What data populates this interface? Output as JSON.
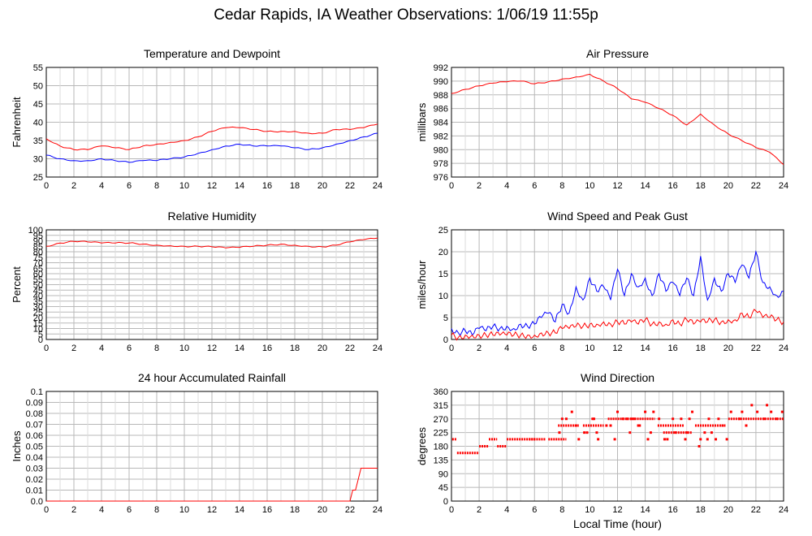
{
  "page": {
    "title": "Cedar Rapids, IA Weather Observations: 1/06/19 11:55p",
    "xlabel": "Local Time (hour)"
  },
  "chart_data": [
    {
      "id": "temp",
      "type": "line",
      "title": "Temperature and Dewpoint",
      "ylabel": "Fahrenheit",
      "xlim": [
        0,
        24
      ],
      "ylim": [
        25,
        55
      ],
      "x_ticks": [
        0,
        2,
        4,
        6,
        8,
        10,
        12,
        14,
        16,
        18,
        20,
        22,
        24
      ],
      "y_ticks": [
        25,
        30,
        35,
        40,
        45,
        50,
        55
      ],
      "grid": true,
      "series": [
        {
          "color": "#ff0000",
          "x": [
            0,
            1,
            2,
            3,
            4,
            5,
            6,
            7,
            8,
            9,
            10,
            11,
            12,
            13,
            14,
            15,
            16,
            17,
            18,
            19,
            20,
            21,
            22,
            23,
            24
          ],
          "y": [
            35.5,
            33.5,
            32.5,
            32.5,
            33.5,
            33,
            32.5,
            33.5,
            34,
            34.5,
            35,
            36,
            37.5,
            38.5,
            38.5,
            38,
            37.5,
            37.5,
            37.5,
            37,
            37,
            38,
            38,
            38.5,
            39.5
          ]
        },
        {
          "color": "#0000ff",
          "x": [
            0,
            1,
            2,
            3,
            4,
            5,
            6,
            7,
            8,
            9,
            10,
            11,
            12,
            13,
            14,
            15,
            16,
            17,
            18,
            19,
            20,
            21,
            22,
            23,
            24
          ],
          "y": [
            31,
            30,
            29.5,
            29.5,
            30,
            29.5,
            29,
            29.5,
            29.5,
            30,
            30.5,
            31.5,
            32.5,
            33.5,
            34,
            33.5,
            33.5,
            33.5,
            33,
            32.5,
            33,
            34,
            35,
            36,
            37
          ]
        }
      ]
    },
    {
      "id": "pressure",
      "type": "line",
      "title": "Air Pressure",
      "ylabel": "millibars",
      "xlim": [
        0,
        24
      ],
      "ylim": [
        976,
        992
      ],
      "x_ticks": [
        0,
        2,
        4,
        6,
        8,
        10,
        12,
        14,
        16,
        18,
        20,
        22,
        24
      ],
      "y_ticks": [
        976,
        978,
        980,
        982,
        984,
        986,
        988,
        990,
        992
      ],
      "grid": true,
      "series": [
        {
          "color": "#ff0000",
          "x": [
            0,
            1,
            2,
            3,
            4,
            5,
            6,
            7,
            8,
            9,
            10,
            11,
            12,
            13,
            14,
            15,
            16,
            17,
            18,
            19,
            20,
            21,
            22,
            23,
            24
          ],
          "y": [
            988.2,
            988.8,
            989.3,
            989.7,
            989.9,
            990,
            989.6,
            989.9,
            990.3,
            990.6,
            991,
            990,
            988.9,
            987.4,
            986.9,
            986,
            985,
            983.6,
            985.2,
            983.6,
            982.3,
            981.3,
            980.3,
            979.6,
            977.8
          ]
        }
      ]
    },
    {
      "id": "humidity",
      "type": "line",
      "title": "Relative Humidity",
      "ylabel": "Percent",
      "xlim": [
        0,
        24
      ],
      "ylim": [
        0,
        100
      ],
      "x_ticks": [
        0,
        2,
        4,
        6,
        8,
        10,
        12,
        14,
        16,
        18,
        20,
        22,
        24
      ],
      "y_ticks": [
        0,
        5,
        10,
        15,
        20,
        25,
        30,
        35,
        40,
        45,
        50,
        55,
        60,
        65,
        70,
        75,
        80,
        85,
        90,
        95,
        100
      ],
      "grid": true,
      "series": [
        {
          "color": "#ff0000",
          "x": [
            0,
            1,
            2,
            3,
            4,
            5,
            6,
            7,
            8,
            9,
            10,
            11,
            12,
            13,
            14,
            15,
            16,
            17,
            18,
            19,
            20,
            21,
            22,
            23,
            24
          ],
          "y": [
            85,
            88,
            89.5,
            89,
            88,
            88,
            88,
            87,
            86,
            85.5,
            85,
            85,
            84.5,
            83.5,
            84,
            85,
            86,
            87,
            86,
            85,
            84.5,
            86,
            89,
            91,
            92.5
          ]
        }
      ]
    },
    {
      "id": "wind",
      "type": "line",
      "title": "Wind Speed and Peak Gust",
      "ylabel": "miles/hour",
      "xlim": [
        0,
        24
      ],
      "ylim": [
        0,
        25
      ],
      "x_ticks": [
        0,
        2,
        4,
        6,
        8,
        10,
        12,
        14,
        16,
        18,
        20,
        22,
        24
      ],
      "y_ticks": [
        0,
        5,
        10,
        15,
        20,
        25
      ],
      "grid": true,
      "series": [
        {
          "color": "#0000ff",
          "x": [
            0,
            0.5,
            1,
            1.5,
            2,
            2.5,
            3,
            3.5,
            4,
            4.5,
            5,
            5.5,
            6,
            6.5,
            7,
            7.5,
            8,
            8.5,
            9,
            9.5,
            10,
            10.5,
            11,
            11.5,
            12,
            12.5,
            13,
            13.5,
            14,
            14.5,
            15,
            15.5,
            16,
            16.5,
            17,
            17.5,
            18,
            18.5,
            19,
            19.5,
            20,
            20.5,
            21,
            21.5,
            22,
            22.5,
            23,
            23.5,
            24
          ],
          "y": [
            2.5,
            1.5,
            2,
            1,
            2.5,
            2,
            3,
            2.5,
            3,
            2.5,
            3.5,
            3,
            3.5,
            5,
            6,
            4,
            8,
            6,
            12,
            9,
            14,
            11,
            12,
            9,
            16,
            10,
            15,
            12,
            14,
            10,
            15,
            11,
            13,
            10,
            14,
            10,
            19,
            9,
            14,
            11,
            15,
            13,
            17,
            14,
            20,
            13,
            12,
            10,
            11
          ]
        },
        {
          "color": "#ff0000",
          "x": [
            0,
            0.5,
            1,
            1.5,
            2,
            2.5,
            3,
            3.5,
            4,
            4.5,
            5,
            5.5,
            6,
            6.5,
            7,
            7.5,
            8,
            8.5,
            9,
            9.5,
            10,
            10.5,
            11,
            11.5,
            12,
            12.5,
            13,
            13.5,
            14,
            14.5,
            15,
            15.5,
            16,
            16.5,
            17,
            17.5,
            18,
            18.5,
            19,
            19.5,
            20,
            20.5,
            21,
            21.5,
            22,
            22.5,
            23,
            23.5,
            24
          ],
          "y": [
            1,
            0.5,
            1,
            1,
            1,
            1,
            1,
            1,
            1,
            1,
            1,
            1,
            1,
            1.5,
            1.5,
            1.5,
            2.5,
            2.5,
            3,
            3,
            3.5,
            3.5,
            4,
            3.5,
            4,
            3.5,
            4,
            3.5,
            4.5,
            3.5,
            4,
            3.5,
            4.5,
            3.5,
            4.5,
            3.5,
            4,
            4,
            4.5,
            4,
            4.5,
            4.5,
            6,
            5,
            6.5,
            5,
            5,
            4.5,
            4
          ]
        }
      ]
    },
    {
      "id": "rain",
      "type": "line",
      "title": "24 hour Accumulated Rainfall",
      "ylabel": "Inches",
      "xlim": [
        0,
        24
      ],
      "ylim": [
        0,
        0.1
      ],
      "x_ticks": [
        0,
        2,
        4,
        6,
        8,
        10,
        12,
        14,
        16,
        18,
        20,
        22,
        24
      ],
      "y_ticks": [
        0.0,
        0.01,
        0.02,
        0.03,
        0.04,
        0.05,
        0.06,
        0.07,
        0.08,
        0.09,
        0.1
      ],
      "y_tick_labels": [
        "0.0",
        "0.01",
        "0.02",
        "0.03",
        "0.04",
        "0.05",
        "0.06",
        "0.07",
        "0.08",
        "0.09",
        "0.1"
      ],
      "grid": true,
      "series": [
        {
          "color": "#ff0000",
          "x": [
            0,
            22,
            22.2,
            22.4,
            22.6,
            22.8,
            24
          ],
          "y": [
            0,
            0,
            0.01,
            0.01,
            0.02,
            0.03,
            0.03
          ]
        }
      ]
    },
    {
      "id": "direction",
      "type": "scatter",
      "title": "Wind Direction",
      "ylabel": "degrees",
      "xlabel": "Local Time (hour)",
      "xlim": [
        0,
        24
      ],
      "ylim": [
        0,
        360
      ],
      "x_ticks": [
        0,
        2,
        4,
        6,
        8,
        10,
        12,
        14,
        16,
        18,
        20,
        22,
        24
      ],
      "y_ticks": [
        0,
        45,
        90,
        135,
        180,
        225,
        270,
        315,
        360
      ],
      "grid": true,
      "series": [
        {
          "color": "#ff0000",
          "segments": [
            {
              "x": [
                0.05,
                0.35
              ],
              "y": 203
            },
            {
              "x": [
                0.4,
                2.0
              ],
              "y": 158
            },
            {
              "x": [
                2.0,
                2.7
              ],
              "y": 180
            },
            {
              "x": [
                2.7,
                3.3
              ],
              "y": 203
            },
            {
              "x": [
                3.3,
                4.0
              ],
              "y": 180
            },
            {
              "x": [
                4.0,
                6.1
              ],
              "y": 203
            },
            {
              "x": [
                5.6,
                6.8
              ],
              "y": 203
            },
            {
              "x": [
                7.0,
                8.3
              ],
              "y": 203
            },
            {
              "x": [
                7.7,
                9.2
              ],
              "y": 248
            },
            {
              "x": [
                9.5,
                11.0
              ],
              "y": 248
            },
            {
              "x": [
                11.3,
                14.7
              ],
              "y": 270
            },
            {
              "x": [
                14.9,
                16.8
              ],
              "y": 248
            },
            {
              "x": [
                15.3,
                17.4
              ],
              "y": 225
            },
            {
              "x": [
                17.6,
                19.8
              ],
              "y": 248
            },
            {
              "x": [
                20.0,
                24.0
              ],
              "y": 270
            }
          ],
          "x": [
            8.3,
            8.7,
            9.0,
            9.8,
            10.2,
            10.6,
            11.2,
            12.0,
            12.4,
            12.9,
            13.2,
            13.6,
            14.0,
            14.4,
            15.0,
            15.6,
            16.2,
            16.6,
            17.0,
            17.4,
            17.9,
            18.3,
            18.6,
            19.1,
            19.6,
            20.2,
            20.8,
            21.3,
            21.7,
            22.1,
            22.6,
            23.1,
            23.5,
            23.9,
            9.2,
            10.5,
            11.8,
            13.5,
            14.2,
            16.9,
            18.0,
            18.8,
            19.3,
            19.9,
            8.0,
            9.6,
            12.7,
            14.6,
            17.2,
            7.8,
            10.3,
            11.5,
            13.0,
            15.4,
            16.0,
            18.5,
            21.0,
            22.8
          ],
          "y": [
            270,
            293,
            248,
            225,
            270,
            203,
            248,
            293,
            270,
            225,
            270,
            248,
            293,
            225,
            270,
            203,
            225,
            270,
            225,
            293,
            180,
            225,
            270,
            203,
            248,
            293,
            270,
            248,
            315,
            293,
            270,
            293,
            270,
            293,
            203,
            225,
            203,
            248,
            203,
            203,
            203,
            225,
            270,
            203,
            270,
            225,
            270,
            293,
            270,
            225,
            270,
            248,
            270,
            203,
            270,
            203,
            293,
            315
          ]
        }
      ]
    }
  ]
}
